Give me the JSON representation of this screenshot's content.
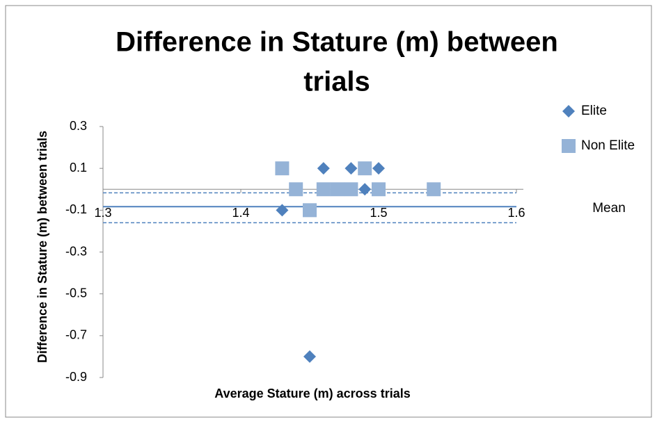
{
  "chart_data": {
    "type": "scatter",
    "title": [
      "Difference in Stature (m) between",
      "trials"
    ],
    "x_label": "Average Stature (m) across trials",
    "y_label": "Difference in Stature  (m) between trials",
    "xlim": [
      1.3,
      1.6
    ],
    "xticks": [
      1.3,
      1.4,
      1.5,
      1.6
    ],
    "ylim": [
      -0.9,
      0.3
    ],
    "yticks": [
      0.3,
      0.1,
      -0.1,
      -0.3,
      -0.5,
      -0.7,
      -0.9
    ],
    "series": [
      {
        "name": "Elite",
        "color": "#4f81bd",
        "marker": "diamond",
        "x": [
          1.43,
          1.46,
          1.48,
          1.49,
          1.5,
          1.45
        ],
        "values": [
          -0.1,
          0.1,
          0.1,
          0,
          0.1,
          -0.8
        ]
      },
      {
        "name": "Non Elite",
        "color": "#95b3d7",
        "marker": "square",
        "x": [
          1.43,
          1.44,
          1.45,
          1.46,
          1.47,
          1.48,
          1.49,
          1.5,
          1.54
        ],
        "values": [
          0.1,
          0,
          -0.1,
          0,
          0,
          0,
          0.1,
          0,
          0
        ]
      }
    ],
    "reference_lines": [
      {
        "name": "Mean",
        "value": -0.083,
        "style": "solid",
        "color": "#4f81bd"
      },
      {
        "value": -0.017,
        "style": "dashed",
        "color": "#4f81bd"
      },
      {
        "value": -0.16,
        "style": "dashed",
        "color": "#4f81bd"
      }
    ]
  }
}
